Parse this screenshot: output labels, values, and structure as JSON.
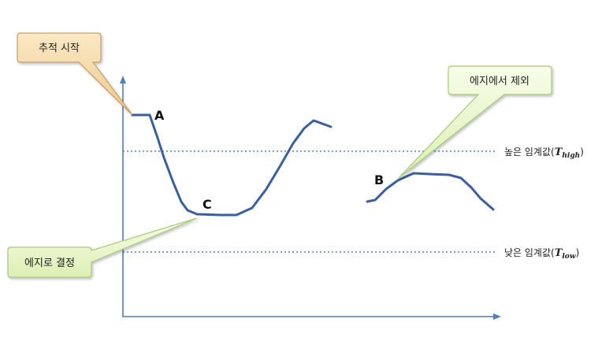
{
  "callouts": {
    "track_start": "추적 시작",
    "remove_from_edge": "에지에서 제외",
    "decide_as_edge": "에지로 결정"
  },
  "points": {
    "a": "A",
    "b": "B",
    "c": "C"
  },
  "thresholds": {
    "high": {
      "text": "높은 임계값(",
      "var": "T",
      "sub": "high",
      "close": ")"
    },
    "low": {
      "text": "낮은 임계값(",
      "var": "T",
      "sub": "low",
      "close": ")"
    }
  },
  "colors": {
    "axis": "#4f7fc0",
    "curve": "#3b5f9e",
    "callout_orange_fill": "#f6d9a8",
    "callout_orange_stroke": "#c9a062",
    "callout_green_fill": "#e9f6c6",
    "callout_green_stroke": "#a8c97a"
  }
}
